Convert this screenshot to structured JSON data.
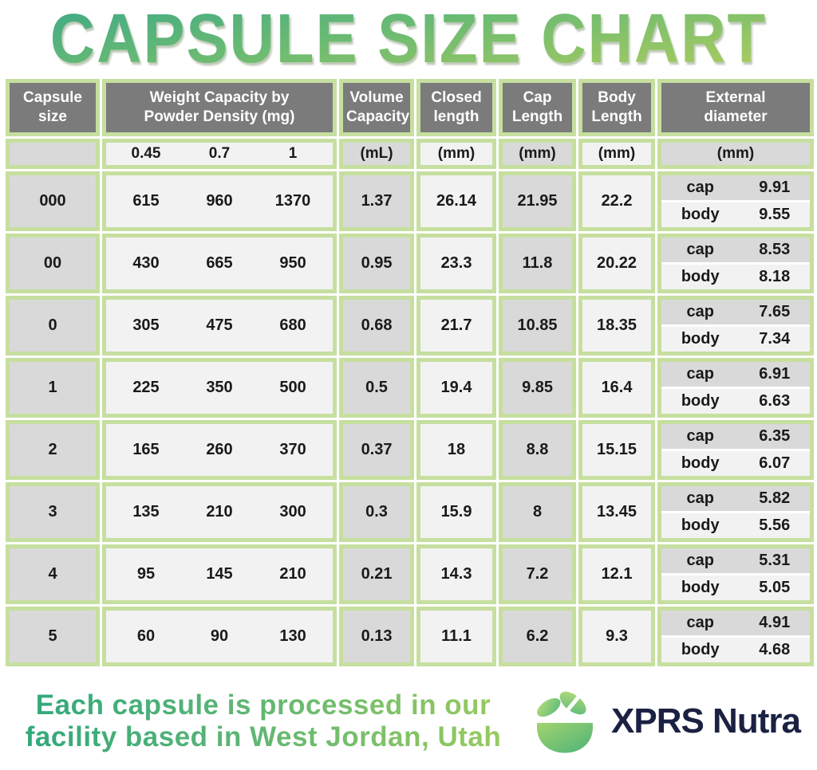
{
  "title": "CAPSULE SIZE CHART",
  "footer": {
    "note": "Each capsule is processed in our\nfacility based in West Jordan, Utah",
    "brand": "XPRS Nutra"
  },
  "colors": {
    "table_border_green": "#c6df9f",
    "header_dark_gray": "#7b7b7b",
    "cell_gray": "#d9d9d9",
    "cell_light": "#f2f2f2",
    "title_gradient_start": "#47ad82",
    "title_gradient_end": "#a8cb5f",
    "brand_navy": "#1b2142",
    "logo_green_light": "#a3d36f",
    "logo_green_dark": "#4db378"
  },
  "chart_data": {
    "type": "table",
    "title": "CAPSULE SIZE CHART",
    "headers": {
      "capsule_size": "Capsule size",
      "weight_capacity": "Weight Capacity by\nPowder Density (mg)",
      "volume_capacity": "Volume\nCapacity",
      "closed_length": "Closed\nlength",
      "cap_length": "Cap\nLength",
      "body_length": "Body\nLength",
      "external_diameter": "External\ndiameter"
    },
    "units": {
      "densities": [
        "0.45",
        "0.7",
        "1"
      ],
      "volume": "(mL)",
      "closed_length": "(mm)",
      "cap_length": "(mm)",
      "body_length": "(mm)",
      "external_diameter": "(mm)"
    },
    "ext_labels": {
      "cap": "cap",
      "body": "body"
    },
    "rows": [
      {
        "size": "000",
        "weights": [
          "615",
          "960",
          "1370"
        ],
        "volume": "1.37",
        "closed": "26.14",
        "cap_length": "21.95",
        "body_length": "22.2",
        "ext_cap": "9.91",
        "ext_body": "9.55"
      },
      {
        "size": "00",
        "weights": [
          "430",
          "665",
          "950"
        ],
        "volume": "0.95",
        "closed": "23.3",
        "cap_length": "11.8",
        "body_length": "20.22",
        "ext_cap": "8.53",
        "ext_body": "8.18"
      },
      {
        "size": "0",
        "weights": [
          "305",
          "475",
          "680"
        ],
        "volume": "0.68",
        "closed": "21.7",
        "cap_length": "10.85",
        "body_length": "18.35",
        "ext_cap": "7.65",
        "ext_body": "7.34"
      },
      {
        "size": "1",
        "weights": [
          "225",
          "350",
          "500"
        ],
        "volume": "0.5",
        "closed": "19.4",
        "cap_length": "9.85",
        "body_length": "16.4",
        "ext_cap": "6.91",
        "ext_body": "6.63"
      },
      {
        "size": "2",
        "weights": [
          "165",
          "260",
          "370"
        ],
        "volume": "0.37",
        "closed": "18",
        "cap_length": "8.8",
        "body_length": "15.15",
        "ext_cap": "6.35",
        "ext_body": "6.07"
      },
      {
        "size": "3",
        "weights": [
          "135",
          "210",
          "300"
        ],
        "volume": "0.3",
        "closed": "15.9",
        "cap_length": "8",
        "body_length": "13.45",
        "ext_cap": "5.82",
        "ext_body": "5.56"
      },
      {
        "size": "4",
        "weights": [
          "95",
          "145",
          "210"
        ],
        "volume": "0.21",
        "closed": "14.3",
        "cap_length": "7.2",
        "body_length": "12.1",
        "ext_cap": "5.31",
        "ext_body": "5.05"
      },
      {
        "size": "5",
        "weights": [
          "60",
          "90",
          "130"
        ],
        "volume": "0.13",
        "closed": "11.1",
        "cap_length": "6.2",
        "body_length": "9.3",
        "ext_cap": "4.91",
        "ext_body": "4.68"
      }
    ]
  }
}
